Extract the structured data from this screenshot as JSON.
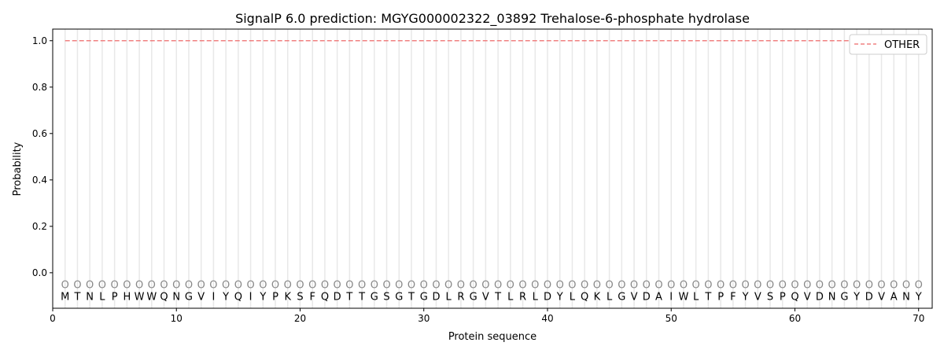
{
  "chart_data": {
    "type": "line",
    "title": "SignalP 6.0 prediction: MGYG000002322_03892 Trehalose-6-phosphate hydrolase",
    "xlabel": "Protein sequence",
    "ylabel": "Probability",
    "xlim": [
      0,
      71.1
    ],
    "ylim": [
      -0.153,
      1.05
    ],
    "xticks": [
      0,
      10,
      20,
      30,
      40,
      50,
      60,
      70
    ],
    "yticks": [
      0.0,
      0.2,
      0.4,
      0.6,
      0.8,
      1.0
    ],
    "ytick_labels": [
      "0.0",
      "0.2",
      "0.4",
      "0.6",
      "0.8",
      "1.0"
    ],
    "grid": "vertical lines at each residue",
    "legend_placement": "top-right",
    "sequence": [
      "M",
      "T",
      "N",
      "L",
      "P",
      "H",
      "W",
      "W",
      "Q",
      "N",
      "G",
      "V",
      "I",
      "Y",
      "Q",
      "I",
      "Y",
      "P",
      "K",
      "S",
      "F",
      "Q",
      "D",
      "T",
      "T",
      "G",
      "S",
      "G",
      "T",
      "G",
      "D",
      "L",
      "R",
      "G",
      "V",
      "T",
      "L",
      "R",
      "L",
      "D",
      "Y",
      "L",
      "Q",
      "K",
      "L",
      "G",
      "V",
      "D",
      "A",
      "I",
      "W",
      "L",
      "T",
      "P",
      "F",
      "Y",
      "V",
      "S",
      "P",
      "Q",
      "V",
      "D",
      "N",
      "G",
      "Y",
      "D",
      "V",
      "A",
      "N",
      "Y"
    ],
    "predicted_label": "O",
    "series": [
      {
        "name": "OTHER",
        "color": "#f08080",
        "style": "dashed",
        "x_range": [
          1,
          70
        ],
        "value": 1.0
      }
    ]
  }
}
